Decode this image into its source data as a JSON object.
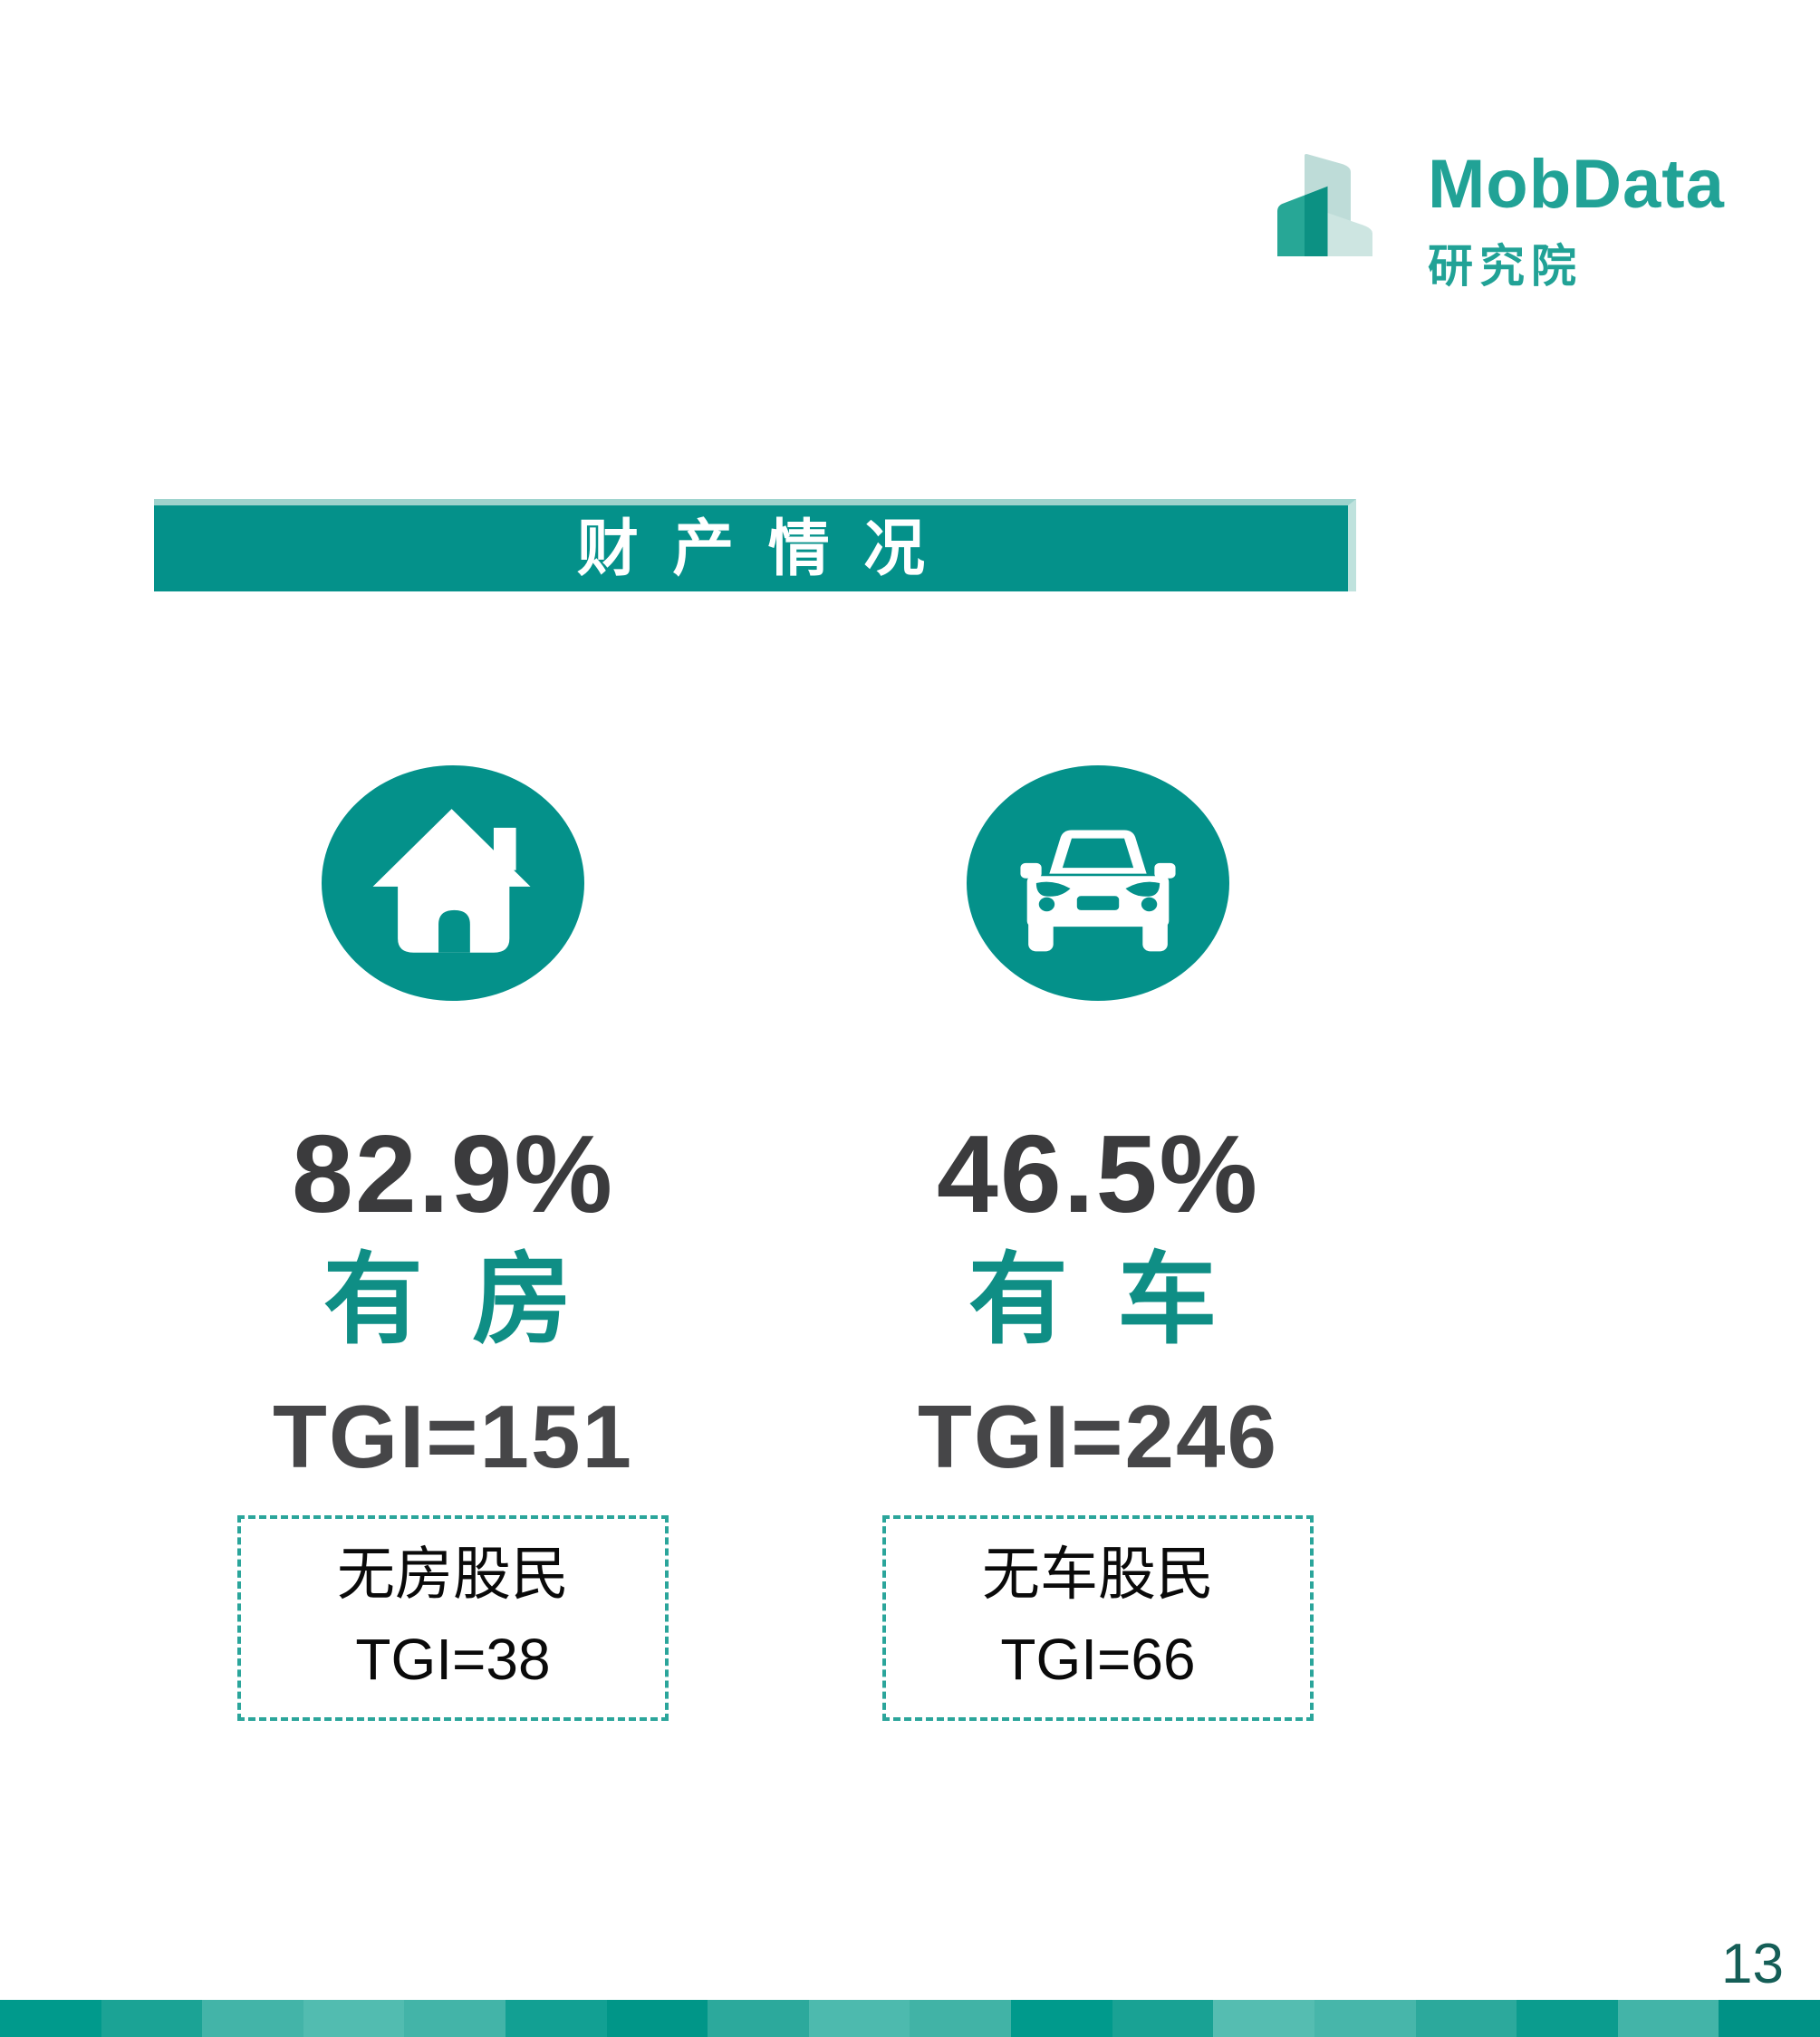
{
  "logo": {
    "brand": "MobData",
    "subtitle": "研究院"
  },
  "title_banner": {
    "text": "财产情况"
  },
  "columns": [
    {
      "icon": "house",
      "percent": "82.9%",
      "label": "有 房",
      "tgi": "TGI=151",
      "box_line1": "无房股民",
      "box_line2": "TGI=38"
    },
    {
      "icon": "car",
      "percent": "46.5%",
      "label": "有 车",
      "tgi": "TGI=246",
      "box_line1": "无车股民",
      "box_line2": "TGI=66"
    }
  ],
  "page_number": "13",
  "colors": {
    "teal": "#04918A",
    "banner_highlight": "#9ED3CD",
    "banner_highlight_right": "#BFE2DD",
    "logo_teal": "#21A296",
    "logo_pale": "#BEDCD8",
    "logo_pale2": "#CDE5E1",
    "logo_green": "#27A796",
    "logo_dark": "#0C9183",
    "dark_text": "#3B3B3D",
    "tgi_text": "#464648",
    "label_teal": "#0F8E85",
    "box_text": "#0A0A0A",
    "dashed_border": "#2BA59B",
    "page_number_color": "#155E57"
  },
  "footer": {
    "segments": [
      "#009A8C",
      "#1BA395",
      "#43B4A8",
      "#52BCB0",
      "#43B4A8",
      "#12A093",
      "#009688",
      "#2CA99C",
      "#4DBAAE",
      "#41B3A6",
      "#009A8C",
      "#19A294",
      "#55BDB1",
      "#47B6AA",
      "#2CA99C",
      "#0B9C8E",
      "#43B4A8",
      "#009286"
    ]
  }
}
